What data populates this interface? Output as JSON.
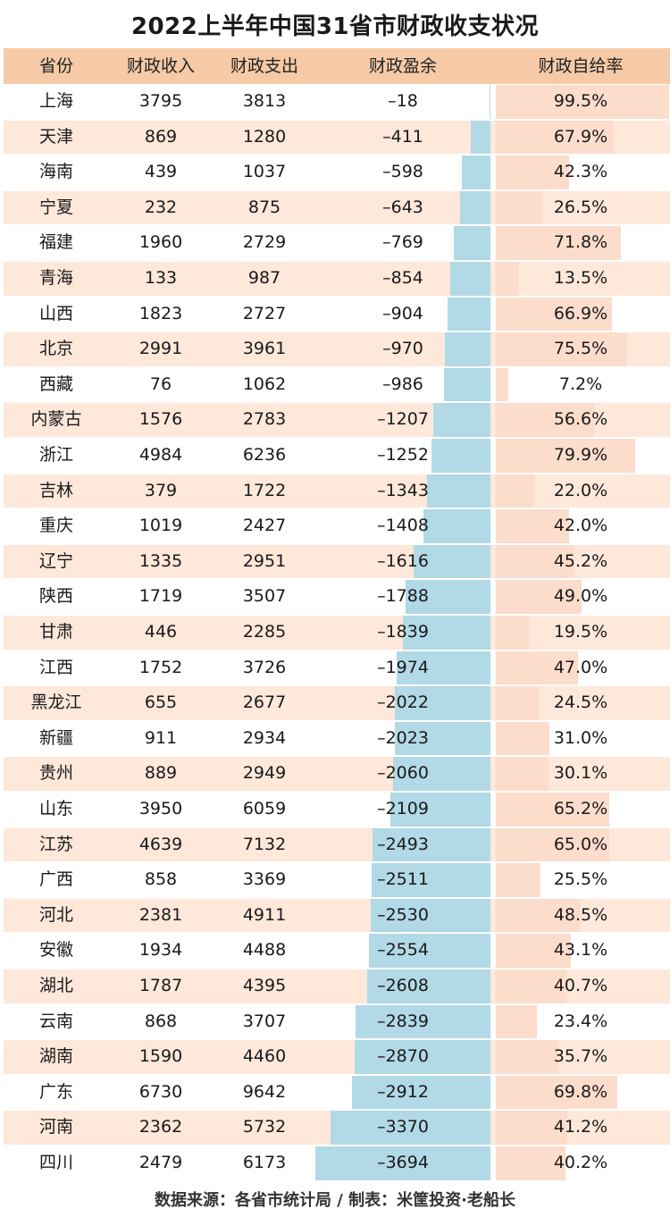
{
  "title": "2022上半年中国31省市财政收支状况",
  "headers": [
    "省份",
    "财政收入",
    "财政支出",
    "财政盈余",
    "财政自给率"
  ],
  "footer": "数据来源：各省市统计局 / 制表：米筐投资·老船长",
  "colors": {
    "header": "#f6caa6",
    "stripe": "#fde8da",
    "bar": "#b2d9e6",
    "rate_bar": "#fcdccb"
  },
  "chart_data": {
    "type": "table",
    "title": "2022上半年中国31省市财政收支状况",
    "columns": [
      "省份",
      "财政收入",
      "财政支出",
      "财政盈余",
      "财政自给率"
    ],
    "rows": [
      {
        "province": "上海",
        "revenue": "3795",
        "expenditure": "3813",
        "surplus": "–18",
        "surplus_value": -18,
        "rate": "99.5%",
        "rate_value": 99.5
      },
      {
        "province": "天津",
        "revenue": "869",
        "expenditure": "1280",
        "surplus": "–411",
        "surplus_value": -411,
        "rate": "67.9%",
        "rate_value": 67.9
      },
      {
        "province": "海南",
        "revenue": "439",
        "expenditure": "1037",
        "surplus": "–598",
        "surplus_value": -598,
        "rate": "42.3%",
        "rate_value": 42.3
      },
      {
        "province": "宁夏",
        "revenue": "232",
        "expenditure": "875",
        "surplus": "–643",
        "surplus_value": -643,
        "rate": "26.5%",
        "rate_value": 26.5
      },
      {
        "province": "福建",
        "revenue": "1960",
        "expenditure": "2729",
        "surplus": "–769",
        "surplus_value": -769,
        "rate": "71.8%",
        "rate_value": 71.8
      },
      {
        "province": "青海",
        "revenue": "133",
        "expenditure": "987",
        "surplus": "–854",
        "surplus_value": -854,
        "rate": "13.5%",
        "rate_value": 13.5
      },
      {
        "province": "山西",
        "revenue": "1823",
        "expenditure": "2727",
        "surplus": "–904",
        "surplus_value": -904,
        "rate": "66.9%",
        "rate_value": 66.9
      },
      {
        "province": "北京",
        "revenue": "2991",
        "expenditure": "3961",
        "surplus": "–970",
        "surplus_value": -970,
        "rate": "75.5%",
        "rate_value": 75.5
      },
      {
        "province": "西藏",
        "revenue": "76",
        "expenditure": "1062",
        "surplus": "–986",
        "surplus_value": -986,
        "rate": "7.2%",
        "rate_value": 7.2
      },
      {
        "province": "内蒙古",
        "revenue": "1576",
        "expenditure": "2783",
        "surplus": "–1207",
        "surplus_value": -1207,
        "rate": "56.6%",
        "rate_value": 56.6
      },
      {
        "province": "浙江",
        "revenue": "4984",
        "expenditure": "6236",
        "surplus": "–1252",
        "surplus_value": -1252,
        "rate": "79.9%",
        "rate_value": 79.9
      },
      {
        "province": "吉林",
        "revenue": "379",
        "expenditure": "1722",
        "surplus": "–1343",
        "surplus_value": -1343,
        "rate": "22.0%",
        "rate_value": 22.0
      },
      {
        "province": "重庆",
        "revenue": "1019",
        "expenditure": "2427",
        "surplus": "–1408",
        "surplus_value": -1408,
        "rate": "42.0%",
        "rate_value": 42.0
      },
      {
        "province": "辽宁",
        "revenue": "1335",
        "expenditure": "2951",
        "surplus": "–1616",
        "surplus_value": -1616,
        "rate": "45.2%",
        "rate_value": 45.2
      },
      {
        "province": "陕西",
        "revenue": "1719",
        "expenditure": "3507",
        "surplus": "–1788",
        "surplus_value": -1788,
        "rate": "49.0%",
        "rate_value": 49.0
      },
      {
        "province": "甘肃",
        "revenue": "446",
        "expenditure": "2285",
        "surplus": "–1839",
        "surplus_value": -1839,
        "rate": "19.5%",
        "rate_value": 19.5
      },
      {
        "province": "江西",
        "revenue": "1752",
        "expenditure": "3726",
        "surplus": "–1974",
        "surplus_value": -1974,
        "rate": "47.0%",
        "rate_value": 47.0
      },
      {
        "province": "黑龙江",
        "revenue": "655",
        "expenditure": "2677",
        "surplus": "–2022",
        "surplus_value": -2022,
        "rate": "24.5%",
        "rate_value": 24.5
      },
      {
        "province": "新疆",
        "revenue": "911",
        "expenditure": "2934",
        "surplus": "–2023",
        "surplus_value": -2023,
        "rate": "31.0%",
        "rate_value": 31.0
      },
      {
        "province": "贵州",
        "revenue": "889",
        "expenditure": "2949",
        "surplus": "–2060",
        "surplus_value": -2060,
        "rate": "30.1%",
        "rate_value": 30.1
      },
      {
        "province": "山东",
        "revenue": "3950",
        "expenditure": "6059",
        "surplus": "–2109",
        "surplus_value": -2109,
        "rate": "65.2%",
        "rate_value": 65.2
      },
      {
        "province": "江苏",
        "revenue": "4639",
        "expenditure": "7132",
        "surplus": "–2493",
        "surplus_value": -2493,
        "rate": "65.0%",
        "rate_value": 65.0
      },
      {
        "province": "广西",
        "revenue": "858",
        "expenditure": "3369",
        "surplus": "–2511",
        "surplus_value": -2511,
        "rate": "25.5%",
        "rate_value": 25.5
      },
      {
        "province": "河北",
        "revenue": "2381",
        "expenditure": "4911",
        "surplus": "–2530",
        "surplus_value": -2530,
        "rate": "48.5%",
        "rate_value": 48.5
      },
      {
        "province": "安徽",
        "revenue": "1934",
        "expenditure": "4488",
        "surplus": "–2554",
        "surplus_value": -2554,
        "rate": "43.1%",
        "rate_value": 43.1
      },
      {
        "province": "湖北",
        "revenue": "1787",
        "expenditure": "4395",
        "surplus": "–2608",
        "surplus_value": -2608,
        "rate": "40.7%",
        "rate_value": 40.7
      },
      {
        "province": "云南",
        "revenue": "868",
        "expenditure": "3707",
        "surplus": "–2839",
        "surplus_value": -2839,
        "rate": "23.4%",
        "rate_value": 23.4
      },
      {
        "province": "湖南",
        "revenue": "1590",
        "expenditure": "4460",
        "surplus": "–2870",
        "surplus_value": -2870,
        "rate": "35.7%",
        "rate_value": 35.7
      },
      {
        "province": "广东",
        "revenue": "6730",
        "expenditure": "9642",
        "surplus": "–2912",
        "surplus_value": -2912,
        "rate": "69.8%",
        "rate_value": 69.8
      },
      {
        "province": "河南",
        "revenue": "2362",
        "expenditure": "5732",
        "surplus": "–3370",
        "surplus_value": -3370,
        "rate": "41.2%",
        "rate_value": 41.2
      },
      {
        "province": "四川",
        "revenue": "2479",
        "expenditure": "6173",
        "surplus": "–3694",
        "surplus_value": -3694,
        "rate": "40.2%",
        "rate_value": 40.2
      }
    ]
  }
}
